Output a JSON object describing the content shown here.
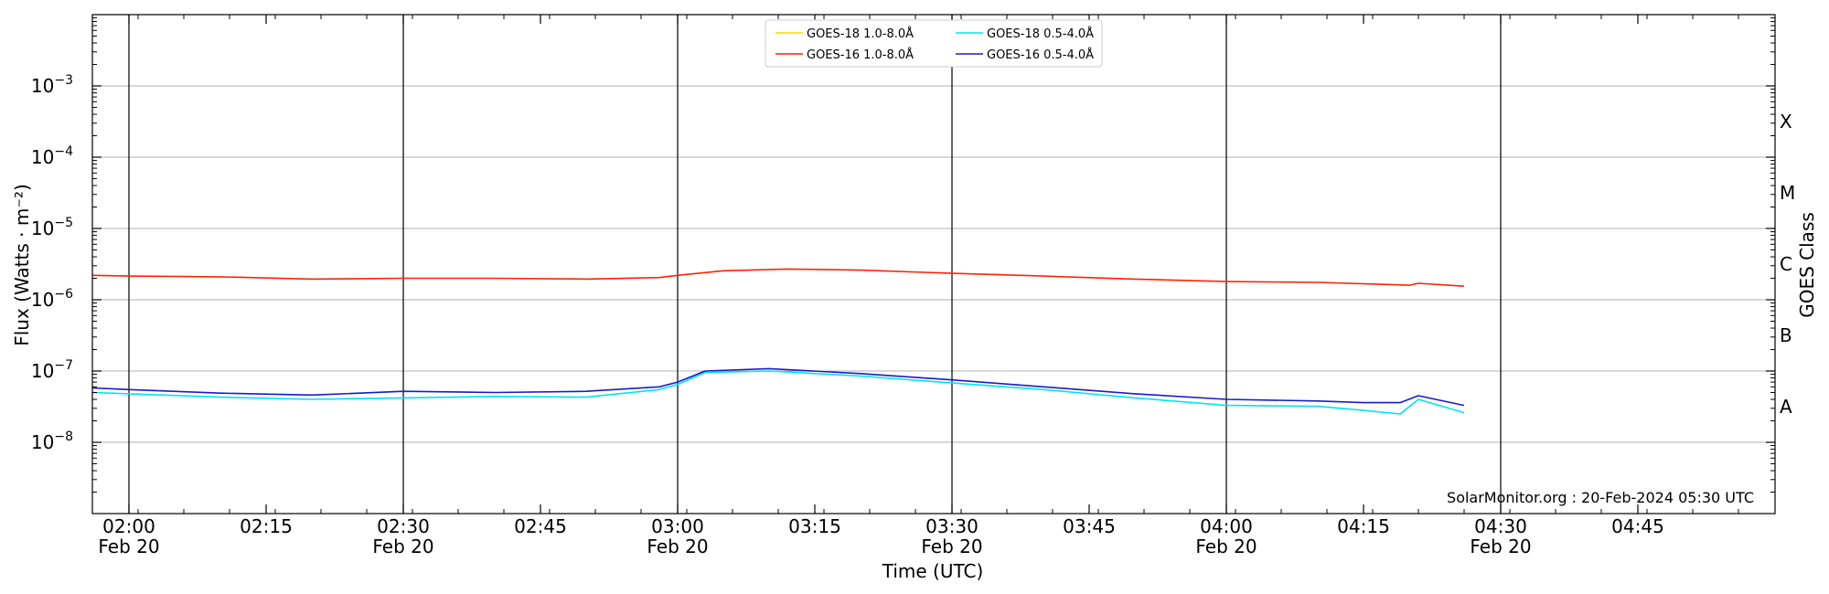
{
  "chart_data": {
    "type": "line",
    "xlabel": "Time (UTC)",
    "ylabel": "Flux (Watts · m⁻²)",
    "y2label": "GOES Class",
    "y_scale": "log",
    "xlim": [
      "01:56",
      "05:00"
    ],
    "ylim": [
      1e-09,
      0.01
    ],
    "grid": "horizontal",
    "legend_position": "top-center",
    "watermark": "SolarMonitor.org : 20-Feb-2024 05:30 UTC",
    "x_ticks": [
      {
        "time": "02:00",
        "label": "02:00",
        "sublabel": "Feb 20"
      },
      {
        "time": "02:15",
        "label": "02:15",
        "sublabel": ""
      },
      {
        "time": "02:30",
        "label": "02:30",
        "sublabel": "Feb 20"
      },
      {
        "time": "02:45",
        "label": "02:45",
        "sublabel": ""
      },
      {
        "time": "03:00",
        "label": "03:00",
        "sublabel": "Feb 20"
      },
      {
        "time": "03:15",
        "label": "03:15",
        "sublabel": ""
      },
      {
        "time": "03:30",
        "label": "03:30",
        "sublabel": "Feb 20"
      },
      {
        "time": "03:45",
        "label": "03:45",
        "sublabel": ""
      },
      {
        "time": "04:00",
        "label": "04:00",
        "sublabel": "Feb 20"
      },
      {
        "time": "04:15",
        "label": "04:15",
        "sublabel": ""
      },
      {
        "time": "04:30",
        "label": "04:30",
        "sublabel": "Feb 20"
      },
      {
        "time": "04:45",
        "label": "04:45",
        "sublabel": ""
      }
    ],
    "day_lines": [
      "02:00",
      "02:30",
      "03:00",
      "03:30",
      "04:00",
      "04:30"
    ],
    "y_ticks": [
      {
        "value": 1e-08,
        "base": "10",
        "exp": "−8"
      },
      {
        "value": 1e-07,
        "base": "10",
        "exp": "−7"
      },
      {
        "value": 1e-06,
        "base": "10",
        "exp": "−6"
      },
      {
        "value": 1e-05,
        "base": "10",
        "exp": "−5"
      },
      {
        "value": 0.0001,
        "base": "10",
        "exp": "−4"
      },
      {
        "value": 0.001,
        "base": "10",
        "exp": "−3"
      }
    ],
    "class_ticks": [
      {
        "label": "A",
        "value": 3.16e-08
      },
      {
        "label": "B",
        "value": 3.16e-07
      },
      {
        "label": "C",
        "value": 3.16e-06
      },
      {
        "label": "M",
        "value": 3.16e-05
      },
      {
        "label": "X",
        "value": 0.000316
      }
    ],
    "series": [
      {
        "name": "GOES-18 1.0-8.0Å",
        "color": "#ffd700",
        "points": []
      },
      {
        "name": "GOES-16 1.0-8.0Å",
        "color": "#ff2200",
        "points": [
          [
            "01:56",
            2.2e-06
          ],
          [
            "02:00",
            2.15e-06
          ],
          [
            "02:10",
            2.1e-06
          ],
          [
            "02:20",
            1.95e-06
          ],
          [
            "02:30",
            2e-06
          ],
          [
            "02:40",
            2e-06
          ],
          [
            "02:50",
            1.95e-06
          ],
          [
            "02:58",
            2.05e-06
          ],
          [
            "03:00",
            2.2e-06
          ],
          [
            "03:05",
            2.55e-06
          ],
          [
            "03:12",
            2.7e-06
          ],
          [
            "03:20",
            2.6e-06
          ],
          [
            "03:30",
            2.35e-06
          ],
          [
            "03:40",
            2.15e-06
          ],
          [
            "03:50",
            1.95e-06
          ],
          [
            "04:00",
            1.8e-06
          ],
          [
            "04:10",
            1.75e-06
          ],
          [
            "04:20",
            1.6e-06
          ],
          [
            "04:21",
            1.7e-06
          ],
          [
            "04:26",
            1.55e-06
          ]
        ]
      },
      {
        "name": "GOES-18 0.5-4.0Å",
        "color": "#00e5ee",
        "points": [
          [
            "01:56",
            5e-08
          ],
          [
            "02:00",
            4.8e-08
          ],
          [
            "02:10",
            4.3e-08
          ],
          [
            "02:20",
            4e-08
          ],
          [
            "02:30",
            4.2e-08
          ],
          [
            "02:40",
            4.4e-08
          ],
          [
            "02:50",
            4.3e-08
          ],
          [
            "02:58",
            5.5e-08
          ],
          [
            "03:00",
            6.5e-08
          ],
          [
            "03:03",
            9.5e-08
          ],
          [
            "03:10",
            1e-07
          ],
          [
            "03:20",
            8.5e-08
          ],
          [
            "03:30",
            6.8e-08
          ],
          [
            "03:40",
            5.5e-08
          ],
          [
            "03:50",
            4.2e-08
          ],
          [
            "04:00",
            3.3e-08
          ],
          [
            "04:10",
            3.2e-08
          ],
          [
            "04:15",
            2.8e-08
          ],
          [
            "04:19",
            2.5e-08
          ],
          [
            "04:21",
            4e-08
          ],
          [
            "04:26",
            2.6e-08
          ]
        ]
      },
      {
        "name": "GOES-16 0.5-4.0Å",
        "color": "#1a1acc",
        "points": [
          [
            "01:56",
            5.8e-08
          ],
          [
            "02:00",
            5.5e-08
          ],
          [
            "02:10",
            4.9e-08
          ],
          [
            "02:20",
            4.6e-08
          ],
          [
            "02:30",
            5.2e-08
          ],
          [
            "02:40",
            5e-08
          ],
          [
            "02:50",
            5.2e-08
          ],
          [
            "02:58",
            6e-08
          ],
          [
            "03:00",
            7e-08
          ],
          [
            "03:03",
            1e-07
          ],
          [
            "03:10",
            1.08e-07
          ],
          [
            "03:20",
            9.2e-08
          ],
          [
            "03:30",
            7.5e-08
          ],
          [
            "03:40",
            6e-08
          ],
          [
            "03:50",
            4.8e-08
          ],
          [
            "04:00",
            4e-08
          ],
          [
            "04:10",
            3.8e-08
          ],
          [
            "04:15",
            3.6e-08
          ],
          [
            "04:19",
            3.6e-08
          ],
          [
            "04:21",
            4.5e-08
          ],
          [
            "04:26",
            3.3e-08
          ]
        ]
      }
    ]
  }
}
